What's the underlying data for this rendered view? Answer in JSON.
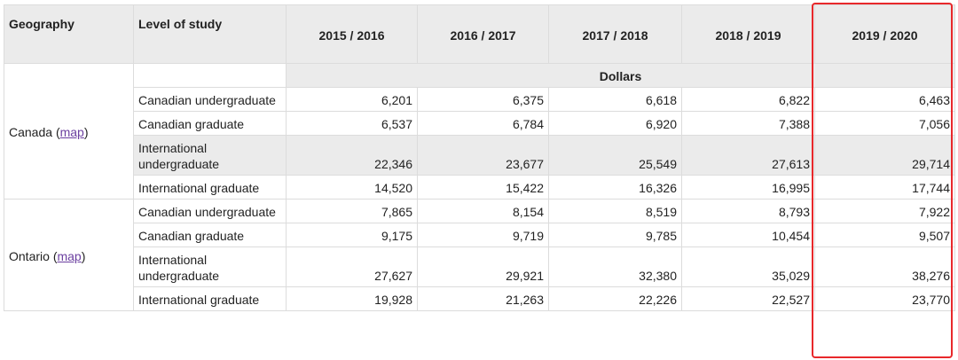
{
  "header": {
    "columns": [
      "Geography",
      "Level of study",
      "2015 / 2016",
      "2016 / 2017",
      "2017 / 2018",
      "2018 / 2019",
      "2019 / 2020"
    ]
  },
  "unit": "Dollars",
  "groups": [
    {
      "name": "Canada",
      "link_prefix": "(",
      "link": "map",
      "link_suffix": ")",
      "rows": [
        {
          "level": "Canadian undergraduate",
          "values": [
            "6,201",
            "6,375",
            "6,618",
            "6,822",
            "6,463"
          ]
        },
        {
          "level": "Canadian graduate",
          "values": [
            "6,537",
            "6,784",
            "6,920",
            "7,388",
            "7,056"
          ]
        },
        {
          "level": "International undergraduate",
          "values": [
            "22,346",
            "23,677",
            "25,549",
            "27,613",
            "29,714"
          ]
        },
        {
          "level": "International graduate",
          "values": [
            "14,520",
            "15,422",
            "16,326",
            "16,995",
            "17,744"
          ]
        }
      ]
    },
    {
      "name": "Ontario",
      "link_prefix": "(",
      "link": "map",
      "link_suffix": ")",
      "rows": [
        {
          "level": "Canadian undergraduate",
          "values": [
            "7,865",
            "8,154",
            "8,519",
            "8,793",
            "7,922"
          ]
        },
        {
          "level": "Canadian graduate",
          "values": [
            "9,175",
            "9,719",
            "9,785",
            "10,454",
            "9,507"
          ]
        },
        {
          "level": "International undergraduate",
          "values": [
            "27,627",
            "29,921",
            "32,380",
            "35,029",
            "38,276"
          ]
        },
        {
          "level": "International graduate",
          "values": [
            "19,928",
            "21,263",
            "22,226",
            "22,527",
            "23,770"
          ]
        }
      ]
    }
  ]
}
